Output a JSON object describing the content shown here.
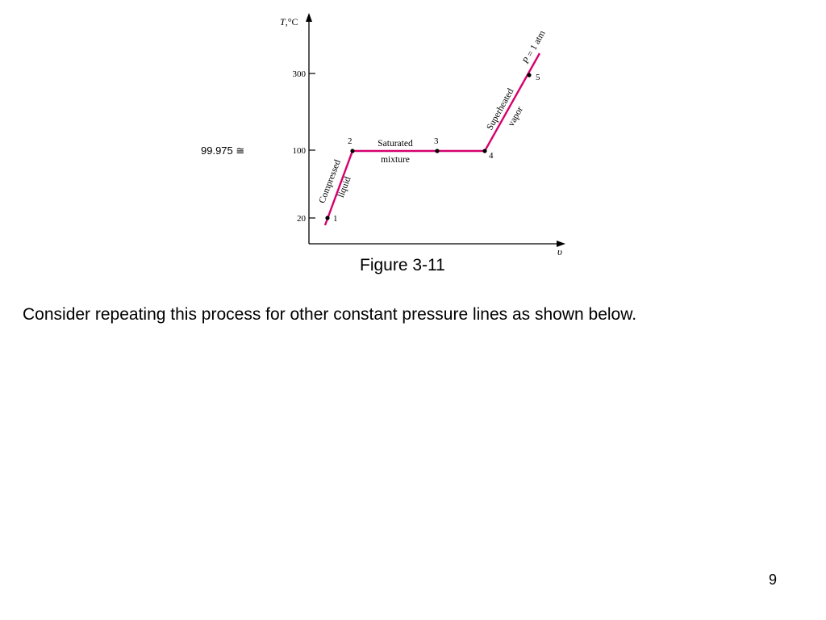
{
  "diagram": {
    "y_axis_label_italic": "T",
    "y_axis_label_unit": ",°C",
    "x_axis_label": "υ",
    "y_ticks": [
      "300",
      "100",
      "20"
    ],
    "annotation_value": "99.975 ≅",
    "pressure_label_italic": "P",
    "pressure_label_rest": " = 1 atm",
    "states": [
      {
        "label": "1"
      },
      {
        "label": "2"
      },
      {
        "label": "3"
      },
      {
        "label": "4"
      },
      {
        "label": "5"
      }
    ],
    "region_labels": {
      "compressed_1": "Compressed",
      "compressed_2": "liquid",
      "saturated_1": "Saturated",
      "saturated_2": "mixture",
      "superheated_1": "Superheated",
      "superheated_2": "vapor"
    },
    "colors": {
      "process_line": "#d6006e",
      "axes": "#000000"
    }
  },
  "caption": "Figure 3-11",
  "body_text": "Consider repeating this process for other constant pressure lines as shown below.",
  "slide_number": "9"
}
